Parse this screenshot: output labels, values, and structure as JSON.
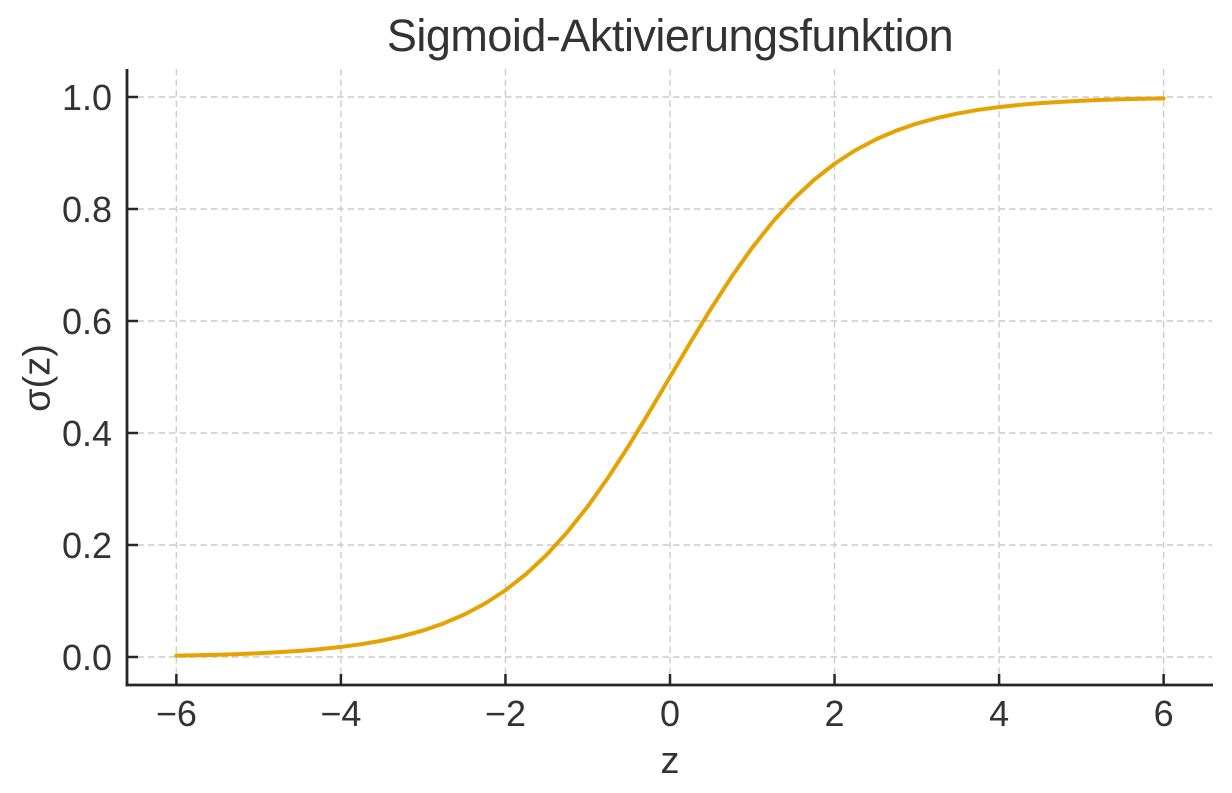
{
  "chart_data": {
    "type": "line",
    "title": "Sigmoid-Aktivierungsfunktion",
    "xlabel": "z",
    "ylabel": "σ(z)",
    "xlim": [
      -6.6,
      6.6
    ],
    "ylim": [
      -0.05,
      1.05
    ],
    "x_ticks": [
      -6,
      -4,
      -2,
      0,
      2,
      4,
      6
    ],
    "x_tick_labels": [
      "−6",
      "−4",
      "−2",
      "0",
      "2",
      "4",
      "6"
    ],
    "y_ticks": [
      0.0,
      0.2,
      0.4,
      0.6,
      0.8,
      1.0
    ],
    "y_tick_labels": [
      "0.0",
      "0.2",
      "0.4",
      "0.6",
      "0.8",
      "1.0"
    ],
    "grid": true,
    "grid_line_style": "dashed",
    "legend": false,
    "spines": [
      "left",
      "bottom"
    ],
    "tick_direction": "in",
    "colors": {
      "curve": "#E6A200",
      "grid": "#cccccc",
      "axis": "#262626",
      "text": "#333333",
      "background": "#ffffff"
    },
    "series": [
      {
        "name": "sigmoid",
        "color": "#E6A200",
        "line_width": 4,
        "x": [
          -6,
          -5.75,
          -5.5,
          -5.25,
          -5,
          -4.75,
          -4.5,
          -4.25,
          -4,
          -3.75,
          -3.5,
          -3.25,
          -3,
          -2.75,
          -2.5,
          -2.25,
          -2,
          -1.75,
          -1.5,
          -1.25,
          -1,
          -0.75,
          -0.5,
          -0.25,
          0,
          0.25,
          0.5,
          0.75,
          1,
          1.25,
          1.5,
          1.75,
          2,
          2.25,
          2.5,
          2.75,
          3,
          3.25,
          3.5,
          3.75,
          4,
          4.25,
          4.5,
          4.75,
          5,
          5.25,
          5.5,
          5.75,
          6
        ],
        "y": [
          0.0025,
          0.0032,
          0.0041,
          0.0052,
          0.0067,
          0.0086,
          0.011,
          0.0141,
          0.018,
          0.0229,
          0.0293,
          0.0373,
          0.0474,
          0.0601,
          0.0759,
          0.0953,
          0.1192,
          0.148,
          0.1824,
          0.2227,
          0.2689,
          0.3208,
          0.3775,
          0.4378,
          0.5,
          0.5622,
          0.6225,
          0.6792,
          0.7311,
          0.7773,
          0.8176,
          0.852,
          0.8808,
          0.9047,
          0.9241,
          0.9399,
          0.9526,
          0.9627,
          0.9707,
          0.9771,
          0.982,
          0.9859,
          0.989,
          0.9914,
          0.9933,
          0.9948,
          0.9959,
          0.9968,
          0.9975
        ]
      }
    ]
  }
}
